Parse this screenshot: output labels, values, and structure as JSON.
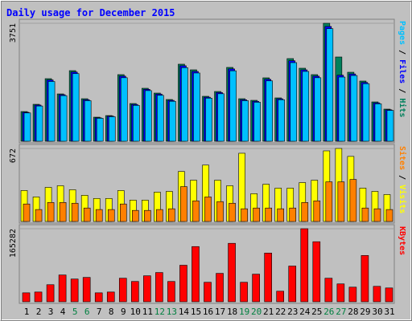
{
  "chart_data": [
    {
      "type": "bar",
      "title": "Daily usage for December 2015",
      "categories": [
        "1",
        "2",
        "3",
        "4",
        "5",
        "6",
        "7",
        "8",
        "9",
        "10",
        "11",
        "12",
        "13",
        "14",
        "15",
        "16",
        "17",
        "18",
        "19",
        "20",
        "21",
        "22",
        "23",
        "24",
        "25",
        "26",
        "27",
        "28",
        "29",
        "30",
        "31"
      ],
      "highlight_indices": [
        4,
        5,
        11,
        12,
        18,
        19,
        25,
        26
      ],
      "highlight_color": "#008040",
      "legend_separator": " / ",
      "ylim": [
        0,
        3751
      ],
      "yticks": [
        3751
      ],
      "series": [
        {
          "name": "Hits",
          "color": "#00805c",
          "values": [
            944,
            1174,
            1990,
            1505,
            2245,
            1352,
            765,
            816,
            2118,
            1199,
            1684,
            1531,
            1327,
            2450,
            2271,
            1429,
            1582,
            2348,
            1352,
            1301,
            2016,
            1378,
            2628,
            2322,
            2118,
            3751,
            2679,
            2194,
            1914,
            1250,
            1021
          ]
        },
        {
          "name": "Files",
          "color": "#0000ff",
          "values": [
            920,
            1150,
            1950,
            1480,
            2200,
            1320,
            745,
            800,
            2070,
            1170,
            1650,
            1500,
            1300,
            2400,
            2220,
            1400,
            1550,
            2300,
            1320,
            1270,
            1970,
            1350,
            2560,
            2270,
            2070,
            3650,
            2100,
            2140,
            1870,
            1220,
            1000
          ]
        },
        {
          "name": "Pages",
          "color": "#00c0ff",
          "values": [
            900,
            1120,
            1900,
            1450,
            2150,
            1290,
            730,
            780,
            2020,
            1140,
            1610,
            1460,
            1270,
            2340,
            2170,
            1370,
            1510,
            2240,
            1290,
            1240,
            1920,
            1320,
            2500,
            2220,
            2020,
            3580,
            2041,
            2090,
            1830,
            1190,
            980
          ]
        }
      ]
    },
    {
      "type": "bar",
      "ylim": [
        0,
        672
      ],
      "yticks": [
        672
      ],
      "legend_separator": " / ",
      "series": [
        {
          "name": "Visits",
          "color": "#ffff00",
          "values": [
            285,
            226,
            314,
            329,
            292,
            241,
            212,
            212,
            285,
            197,
            197,
            270,
            277,
            460,
            380,
            519,
            380,
            329,
            628,
            256,
            343,
            307,
            307,
            358,
            380,
            650,
            672,
            599,
            307,
            277,
            248
          ]
        },
        {
          "name": "Sites",
          "color": "#ff8000",
          "values": [
            161,
            110,
            175,
            175,
            168,
            124,
            110,
            110,
            161,
            102,
            102,
            110,
            117,
            321,
            190,
            226,
            183,
            168,
            117,
            124,
            124,
            117,
            124,
            175,
            190,
            365,
            365,
            387,
            124,
            117,
            110
          ]
        }
      ]
    },
    {
      "type": "bar",
      "ylim": [
        0,
        165282
      ],
      "yticks": [
        165282
      ],
      "series": [
        {
          "name": "KBytes",
          "color": "#ff0000",
          "values": [
            20202,
            22038,
            38565,
            60603,
            51420,
            55093,
            20202,
            22038,
            53257,
            45911,
            58766,
            66112,
            45911,
            82641,
            124880,
            44075,
            64275,
            132226,
            44075,
            62440,
            110189,
            23874,
            80804,
            165282,
            135899,
            53257,
            40402,
            33056,
            104680,
            34892,
            31220
          ]
        }
      ]
    }
  ]
}
